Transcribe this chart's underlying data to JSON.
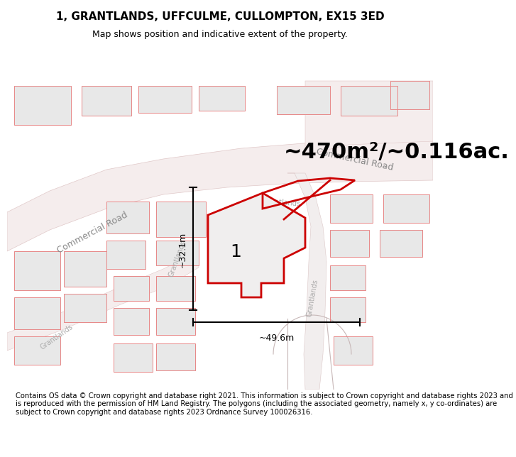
{
  "title": "1, GRANTLANDS, UFFCULME, CULLOMPTON, EX15 3ED",
  "subtitle": "Map shows position and indicative extent of the property.",
  "area_text": "~470m²/~0.116ac.",
  "dim_vertical": "~32.1m",
  "dim_horizontal": "~49.6m",
  "label_number": "1",
  "footer": "Contains OS data © Crown copyright and database right 2021. This information is subject to Crown copyright and database rights 2023 and is reproduced with the permission of HM Land Registry. The polygons (including the associated geometry, namely x, y co-ordinates) are subject to Crown copyright and database rights 2023 Ordnance Survey 100026316.",
  "bg_color": "#ffffff",
  "map_bg": "#ffffff",
  "bld_fill": "#e8e8e8",
  "bld_edge": "#c8c8c8",
  "pink_edge": "#e88888",
  "road_fill": "#f0e8e8",
  "title_fontsize": 11,
  "subtitle_fontsize": 9,
  "area_fontsize": 22,
  "footer_fontsize": 7.2,
  "label_fontsize": 18,
  "dim_fontsize": 9,
  "road_label_size": 9,
  "grantlands_label_size": 7
}
